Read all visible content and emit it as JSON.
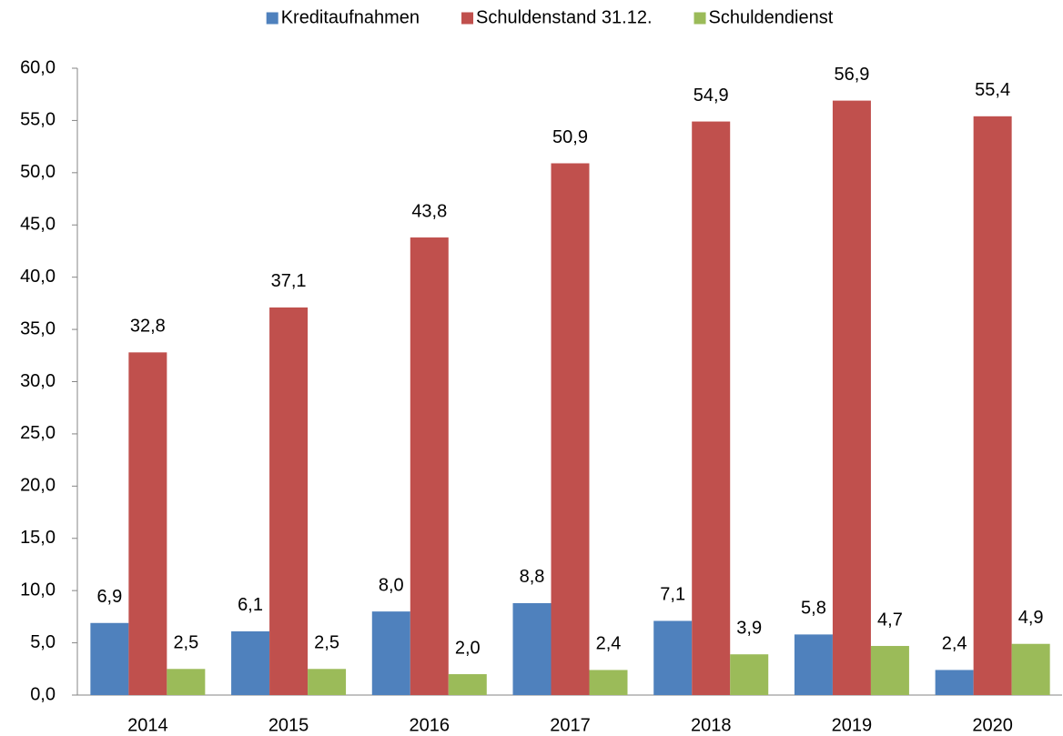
{
  "chart_data": {
    "type": "bar",
    "categories": [
      "2014",
      "2015",
      "2016",
      "2017",
      "2018",
      "2019",
      "2020"
    ],
    "series": [
      {
        "name": "Kreditaufnahmen",
        "color": "#4f81bd",
        "values": [
          6.9,
          6.1,
          8.0,
          8.8,
          7.1,
          5.8,
          2.4
        ],
        "value_labels": [
          "6,9",
          "6,1",
          "8,0",
          "8,8",
          "7,1",
          "5,8",
          "2,4"
        ]
      },
      {
        "name": "Schuldenstand 31.12.",
        "color": "#c0504d",
        "values": [
          32.8,
          37.1,
          43.8,
          50.9,
          54.9,
          56.9,
          55.4
        ],
        "value_labels": [
          "32,8",
          "37,1",
          "43,8",
          "50,9",
          "54,9",
          "56,9",
          "55,4"
        ]
      },
      {
        "name": "Schuldendienst",
        "color": "#9bbb59",
        "values": [
          2.5,
          2.5,
          2.0,
          2.4,
          3.9,
          4.7,
          4.9
        ],
        "value_labels": [
          "2,5",
          "2,5",
          "2,0",
          "2,4",
          "3,9",
          "4,7",
          "4,9"
        ]
      }
    ],
    "ylim": [
      0,
      60
    ],
    "yticks": [
      {
        "value": 0,
        "label": "0,0"
      },
      {
        "value": 5,
        "label": "5,0"
      },
      {
        "value": 10,
        "label": "10,0"
      },
      {
        "value": 15,
        "label": "15,0"
      },
      {
        "value": 20,
        "label": "20,0"
      },
      {
        "value": 25,
        "label": "25,0"
      },
      {
        "value": 30,
        "label": "30,0"
      },
      {
        "value": 35,
        "label": "35,0"
      },
      {
        "value": 40,
        "label": "40,0"
      },
      {
        "value": 45,
        "label": "45,0"
      },
      {
        "value": 50,
        "label": "50,0"
      },
      {
        "value": 55,
        "label": "55,0"
      },
      {
        "value": 60,
        "label": "60,0"
      }
    ],
    "grid": false,
    "legend": "top"
  }
}
